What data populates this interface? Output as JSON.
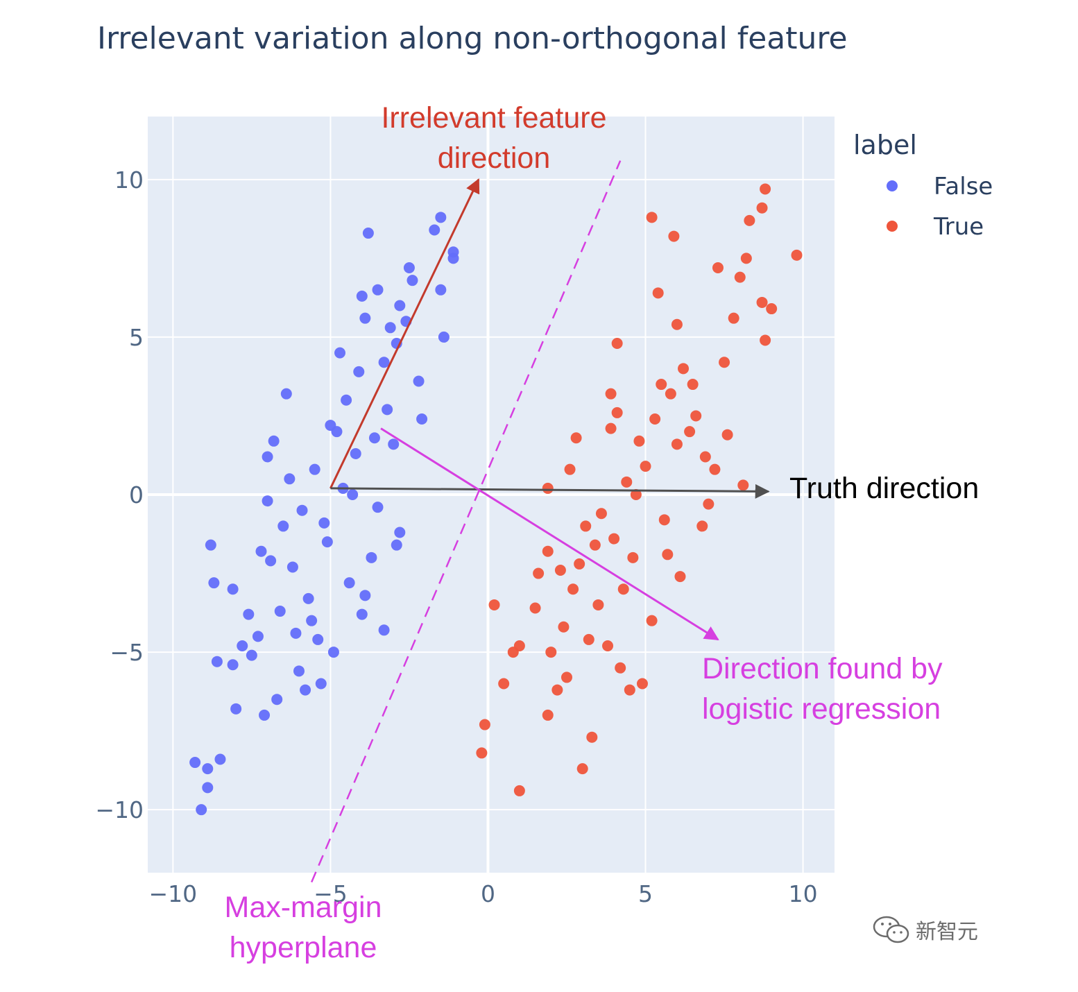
{
  "chart_data": {
    "type": "scatter",
    "title": "Irrelevant variation along non-orthogonal feature",
    "xlabel": "",
    "ylabel": "",
    "xlim": [
      -10.8,
      11
    ],
    "ylim": [
      -12,
      12
    ],
    "xticks": [
      -10,
      -5,
      0,
      5,
      10
    ],
    "xtick_labels": [
      "−10",
      "−5",
      "0",
      "5",
      "10"
    ],
    "yticks": [
      -10,
      -5,
      0,
      5,
      10
    ],
    "ytick_labels": [
      "−10",
      "−5",
      "0",
      "5",
      "10"
    ],
    "grid": true,
    "legend": {
      "title": "label",
      "placement": "top-right outside",
      "entries": [
        {
          "name": "False",
          "color": "#636efa"
        },
        {
          "name": "True",
          "color": "#ef553b"
        }
      ]
    },
    "series": [
      {
        "name": "False",
        "color": "#636efa",
        "x": [
          -3.8,
          -1.5,
          -1.7,
          -1.1,
          -1.1,
          -2.5,
          -2.4,
          -1.5,
          -1.4,
          -3.5,
          -4.0,
          -2.8,
          -2.6,
          -3.9,
          -3.1,
          -2.9,
          -3.3,
          -4.7,
          -6.4,
          -6.8,
          -7.0,
          -7.0,
          -8.8,
          -8.7,
          -8.1,
          -6.6,
          -7.3,
          -7.8,
          -7.5,
          -8.1,
          -8.6,
          -9.3,
          -8.9,
          -8.5,
          -8.9,
          -9.1,
          -8.0,
          -7.1,
          -6.7,
          -5.3,
          -4.0,
          -2.8,
          -3.6,
          -4.8,
          -5.5,
          -5.9,
          -4.1,
          -3.2,
          -5.0,
          -6.2,
          -5.6,
          -6.0,
          -4.4,
          -3.9,
          -4.2,
          -3.5,
          -6.3,
          -7.2,
          -5.2,
          -4.6,
          -3.0,
          -2.2,
          -2.1,
          -6.5,
          -5.1,
          -5.7,
          -6.1,
          -4.9,
          -3.7,
          -4.3,
          -4.5,
          -5.4,
          -3.3,
          -2.9,
          -6.9,
          -7.6,
          -5.8
        ],
        "y": [
          8.3,
          8.8,
          8.4,
          7.7,
          7.5,
          7.2,
          6.8,
          6.5,
          5.0,
          6.5,
          6.3,
          6.0,
          5.5,
          5.6,
          5.3,
          4.8,
          4.2,
          4.5,
          3.2,
          1.7,
          1.2,
          -0.2,
          -1.6,
          -2.8,
          -3.0,
          -3.7,
          -4.5,
          -4.8,
          -5.1,
          -5.4,
          -5.3,
          -8.5,
          -8.7,
          -8.4,
          -9.3,
          -10.0,
          -6.8,
          -7.0,
          -6.5,
          -6.0,
          -3.8,
          -1.2,
          1.8,
          2.0,
          0.8,
          -0.5,
          3.9,
          2.7,
          2.2,
          -2.3,
          -4.0,
          -5.6,
          -2.8,
          -3.2,
          1.3,
          -0.4,
          0.5,
          -1.8,
          -0.9,
          0.2,
          1.6,
          3.6,
          2.4,
          -1.0,
          -1.5,
          -3.3,
          -4.4,
          -5.0,
          -2.0,
          0.0,
          3.0,
          -4.6,
          -4.3,
          -1.6,
          -2.1,
          -3.8,
          -6.2
        ]
      },
      {
        "name": "True",
        "color": "#ef553b",
        "x": [
          8.8,
          9.8,
          8.7,
          8.3,
          5.2,
          5.9,
          7.3,
          8.0,
          8.2,
          8.7,
          9.0,
          8.8,
          7.8,
          7.5,
          6.5,
          6.0,
          5.4,
          4.1,
          3.9,
          2.8,
          2.6,
          1.9,
          1.9,
          1.6,
          1.5,
          1.0,
          0.8,
          0.5,
          0.2,
          -0.1,
          -0.2,
          1.0,
          1.9,
          2.2,
          2.5,
          3.0,
          3.3,
          3.2,
          4.2,
          4.5,
          4.9,
          5.2,
          6.1,
          6.8,
          7.2,
          6.4,
          5.5,
          4.8,
          3.6,
          2.9,
          4.0,
          5.0,
          6.0,
          5.6,
          4.6,
          3.5,
          2.4,
          2.0,
          3.8,
          4.3,
          5.8,
          6.6,
          7.0,
          6.2,
          5.3,
          4.4,
          3.1,
          2.7,
          3.9,
          4.7,
          5.7,
          6.9,
          7.6,
          8.1,
          2.3,
          3.4,
          4.1
        ],
        "y": [
          9.7,
          7.6,
          9.1,
          8.7,
          8.8,
          8.2,
          7.2,
          6.9,
          7.5,
          6.1,
          5.9,
          4.9,
          5.6,
          4.2,
          3.5,
          5.4,
          6.4,
          4.8,
          3.2,
          1.8,
          0.8,
          0.2,
          -1.8,
          -2.5,
          -3.6,
          -4.8,
          -5.0,
          -6.0,
          -3.5,
          -7.3,
          -8.2,
          -9.4,
          -7.0,
          -6.2,
          -5.8,
          -8.7,
          -7.7,
          -4.6,
          -5.5,
          -6.2,
          -6.0,
          -4.0,
          -2.6,
          -1.0,
          0.8,
          2.0,
          3.5,
          1.7,
          -0.6,
          -2.2,
          -1.4,
          0.9,
          1.6,
          -0.8,
          -2.0,
          -3.5,
          -4.2,
          -5.0,
          -4.8,
          -3.0,
          3.2,
          2.5,
          -0.3,
          4.0,
          2.4,
          0.4,
          -1.0,
          -3.0,
          2.1,
          0.0,
          -1.9,
          1.2,
          1.9,
          0.3,
          -2.4,
          -1.6,
          2.6
        ]
      }
    ],
    "arrows": [
      {
        "id": "irrelevant",
        "from": [
          -5,
          0.2
        ],
        "to": [
          -0.3,
          10
        ],
        "color": "#c33a2c",
        "label": "Irrelevant feature\ndirection"
      },
      {
        "id": "truth",
        "from": [
          -5,
          0.2
        ],
        "to": [
          8.9,
          0.1
        ],
        "color": "#505050",
        "label": "Truth direction"
      },
      {
        "id": "logistic",
        "from": [
          -3.4,
          2.1
        ],
        "to": [
          7.3,
          -4.6
        ],
        "color": "#d63fe0",
        "label": "Direction found by\nlogistic regression"
      }
    ],
    "hyperplane": {
      "from": [
        -5.6,
        -12.3
      ],
      "to": [
        4.2,
        10.6
      ],
      "color": "#d63fe0",
      "style": "dashed",
      "label": "Max-margin\nhyperplane"
    },
    "annotation_colors": {
      "irrelevant": "#d23b2c",
      "truth": "#000000",
      "logistic": "#d63fe0",
      "hyperplane": "#d63fe0"
    },
    "background": "#e5ecf6"
  },
  "watermark": {
    "icon": "wechat-icon",
    "text": "新智元"
  }
}
